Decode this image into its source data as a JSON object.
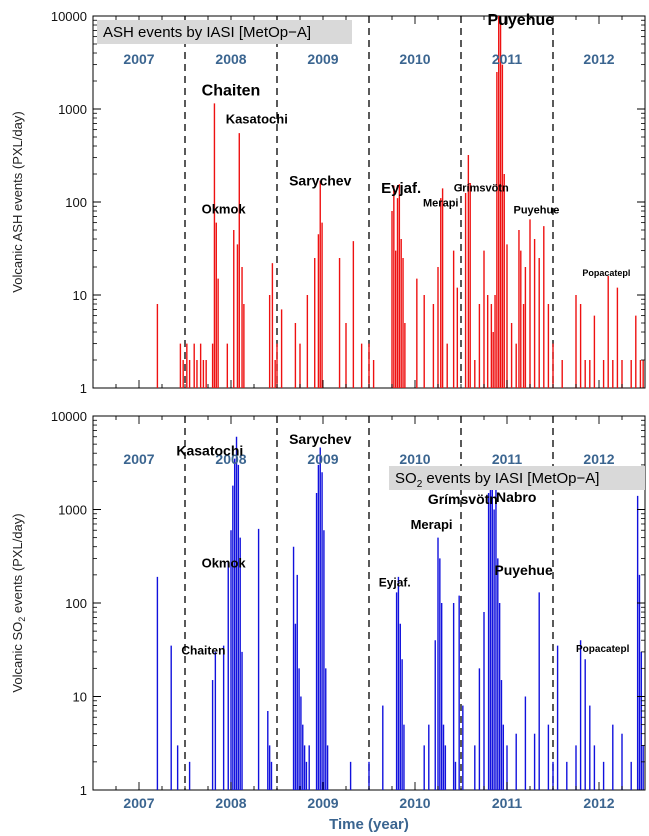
{
  "chart_data": [
    {
      "type": "bar",
      "title": "ASH events by IASI [MetOp−A]",
      "ylabel": "Volcanic ASH events (PXL/day)",
      "xlabel": "",
      "y_scale": "log",
      "ylim": [
        1,
        10000
      ],
      "xlim": [
        2006.5,
        2012.5
      ],
      "y_ticks": [
        "1",
        "10",
        "100",
        "1000",
        "10000"
      ],
      "year_labels": [
        "2007",
        "2008",
        "2009",
        "2010",
        "2011",
        "2012"
      ],
      "year_separators": [
        2007.5,
        2008.5,
        2009.5,
        2010.5,
        2011.5
      ],
      "bar_color": "#ee1111",
      "annotations": [
        {
          "text": "Chaiten",
          "x": 2008.0,
          "y": 1400,
          "size": 16
        },
        {
          "text": "Kasatochi",
          "x": 2008.28,
          "y": 700,
          "size": 13
        },
        {
          "text": "Okmok",
          "x": 2007.92,
          "y": 75,
          "size": 13
        },
        {
          "text": "Sarychev",
          "x": 2008.97,
          "y": 150,
          "size": 14
        },
        {
          "text": "Eyjaf.",
          "x": 2009.85,
          "y": 125,
          "size": 15
        },
        {
          "text": "Merapi",
          "x": 2010.28,
          "y": 90,
          "size": 11
        },
        {
          "text": "Grímsvötn",
          "x": 2010.72,
          "y": 130,
          "size": 11
        },
        {
          "text": "Puyehue",
          "x": 2011.15,
          "y": 8000,
          "size": 16
        },
        {
          "text": "Puyehue",
          "x": 2011.32,
          "y": 75,
          "size": 11
        },
        {
          "text": "Popacatepl",
          "x": 2012.08,
          "y": 16,
          "size": 9
        }
      ],
      "series": [
        {
          "x": [
            2007.2,
            2007.45,
            2007.48,
            2007.52,
            2007.55,
            2007.6,
            2007.63,
            2007.67,
            2007.7,
            2007.73,
            2007.8,
            2007.82,
            2007.84,
            2007.86,
            2007.96,
            2008.03,
            2008.07,
            2008.09,
            2008.12,
            2008.14,
            2008.42,
            2008.45,
            2008.48,
            2008.5,
            2008.55,
            2008.7,
            2008.75,
            2008.83,
            2008.91,
            2008.95,
            2008.97,
            2008.99,
            2009.18,
            2009.25,
            2009.33,
            2009.42,
            2009.5,
            2009.55,
            2009.75,
            2009.77,
            2009.79,
            2009.81,
            2009.83,
            2009.85,
            2009.87,
            2009.89,
            2010.02,
            2010.1,
            2010.2,
            2010.25,
            2010.28,
            2010.3,
            2010.35,
            2010.42,
            2010.46,
            2010.55,
            2010.58,
            2010.6,
            2010.65,
            2010.7,
            2010.75,
            2010.79,
            2010.83,
            2010.85,
            2010.87,
            2010.89,
            2010.91,
            2010.93,
            2010.95,
            2010.97,
            2011.0,
            2011.05,
            2011.1,
            2011.13,
            2011.15,
            2011.18,
            2011.2,
            2011.25,
            2011.3,
            2011.35,
            2011.4,
            2011.45,
            2011.5,
            2011.6,
            2011.75,
            2011.8,
            2011.85,
            2011.9,
            2011.95,
            2012.05,
            2012.1,
            2012.15,
            2012.2,
            2012.25,
            2012.35,
            2012.4,
            2012.45,
            2012.48
          ],
          "values": [
            8,
            3,
            2,
            3,
            2,
            3,
            2,
            3,
            2,
            2,
            3,
            1150,
            60,
            15,
            3,
            50,
            35,
            550,
            20,
            8,
            10,
            22,
            2,
            3,
            7,
            5,
            3,
            10,
            25,
            45,
            170,
            60,
            25,
            5,
            38,
            3,
            3,
            2,
            80,
            150,
            30,
            110,
            155,
            40,
            25,
            5,
            15,
            10,
            8,
            20,
            110,
            140,
            3,
            30,
            12,
            125,
            320,
            160,
            2,
            8,
            30,
            10,
            8,
            4,
            10,
            2500,
            10000,
            9000,
            3000,
            200,
            35,
            5,
            3,
            50,
            30,
            8,
            20,
            65,
            40,
            25,
            55,
            8,
            3,
            2,
            10,
            8,
            2,
            2,
            6,
            2,
            16,
            2,
            12,
            2,
            2,
            6,
            2,
            2
          ]
        }
      ]
    },
    {
      "type": "bar",
      "title_prefix": "SO",
      "title_sub": "2",
      "title_suffix": " events by IASI [MetOp−A]",
      "ylabel_prefix": "Volcanic SO",
      "ylabel_sub": "2",
      "ylabel_suffix": " events (PXL/day)",
      "xlabel": "Time  (year)",
      "y_scale": "log",
      "ylim": [
        1,
        10000
      ],
      "xlim": [
        2006.5,
        2012.5
      ],
      "y_ticks": [
        "1",
        "10",
        "100",
        "1000",
        "10000"
      ],
      "year_labels": [
        "2007",
        "2008",
        "2009",
        "2010",
        "2011",
        "2012"
      ],
      "x_tick_labels": [
        "2007",
        "2008",
        "2009",
        "2010",
        "2011",
        "2012"
      ],
      "year_separators": [
        2007.5,
        2008.5,
        2009.5,
        2010.5,
        2011.5
      ],
      "bar_color": "#1111dd",
      "annotations": [
        {
          "text": "Kasatochi",
          "x": 2007.77,
          "y": 3800,
          "size": 14
        },
        {
          "text": "Sarychev",
          "x": 2008.97,
          "y": 5000,
          "size": 14
        },
        {
          "text": "Okmok",
          "x": 2007.92,
          "y": 240,
          "size": 13
        },
        {
          "text": "Chaiten",
          "x": 2007.7,
          "y": 28,
          "size": 12
        },
        {
          "text": "Eyjaf.",
          "x": 2009.78,
          "y": 150,
          "size": 12
        },
        {
          "text": "Merapi",
          "x": 2010.18,
          "y": 620,
          "size": 13
        },
        {
          "text": "Grímsvötn",
          "x": 2010.52,
          "y": 1150,
          "size": 14
        },
        {
          "text": "Nabro",
          "x": 2011.1,
          "y": 1200,
          "size": 14
        },
        {
          "text": "Puyehue",
          "x": 2011.18,
          "y": 200,
          "size": 14
        },
        {
          "text": "Popacatepl",
          "x": 2012.04,
          "y": 30,
          "size": 10
        }
      ],
      "series": [
        {
          "x": [
            2007.2,
            2007.35,
            2007.42,
            2007.55,
            2007.8,
            2007.83,
            2007.92,
            2007.97,
            2008.0,
            2008.02,
            2008.04,
            2008.06,
            2008.08,
            2008.1,
            2008.12,
            2008.3,
            2008.4,
            2008.42,
            2008.44,
            2008.68,
            2008.7,
            2008.72,
            2008.74,
            2008.76,
            2008.78,
            2008.8,
            2008.82,
            2008.85,
            2008.93,
            2008.95,
            2008.97,
            2008.99,
            2009.01,
            2009.03,
            2009.05,
            2009.3,
            2009.5,
            2009.65,
            2009.8,
            2009.82,
            2009.84,
            2009.86,
            2009.88,
            2010.1,
            2010.15,
            2010.22,
            2010.25,
            2010.27,
            2010.29,
            2010.31,
            2010.33,
            2010.42,
            2010.44,
            2010.48,
            2010.52,
            2010.65,
            2010.7,
            2010.75,
            2010.8,
            2010.82,
            2010.84,
            2010.86,
            2010.88,
            2010.9,
            2010.92,
            2010.94,
            2010.96,
            2011.0,
            2011.1,
            2011.2,
            2011.3,
            2011.35,
            2011.45,
            2011.5,
            2011.55,
            2011.65,
            2011.75,
            2011.8,
            2011.85,
            2011.9,
            2011.95,
            2012.05,
            2012.15,
            2012.25,
            2012.35,
            2012.42,
            2012.44,
            2012.46,
            2012.48
          ],
          "values": [
            190,
            35,
            3,
            2,
            15,
            30,
            35,
            280,
            600,
            1800,
            3500,
            6000,
            3000,
            500,
            30,
            620,
            7,
            3,
            2,
            400,
            60,
            200,
            20,
            10,
            5,
            3,
            2,
            3,
            1500,
            3000,
            4600,
            2500,
            600,
            20,
            3,
            2,
            2,
            8,
            130,
            190,
            60,
            25,
            5,
            3,
            5,
            40,
            500,
            300,
            100,
            5,
            3,
            100,
            2,
            120,
            8,
            3,
            20,
            80,
            1500,
            2100,
            1800,
            1000,
            2000,
            300,
            100,
            15,
            5,
            3,
            4,
            10,
            4,
            130,
            5,
            2,
            35,
            2,
            3,
            40,
            25,
            8,
            3,
            2,
            5,
            4,
            2,
            1400,
            200,
            30,
            3
          ]
        }
      ]
    }
  ]
}
